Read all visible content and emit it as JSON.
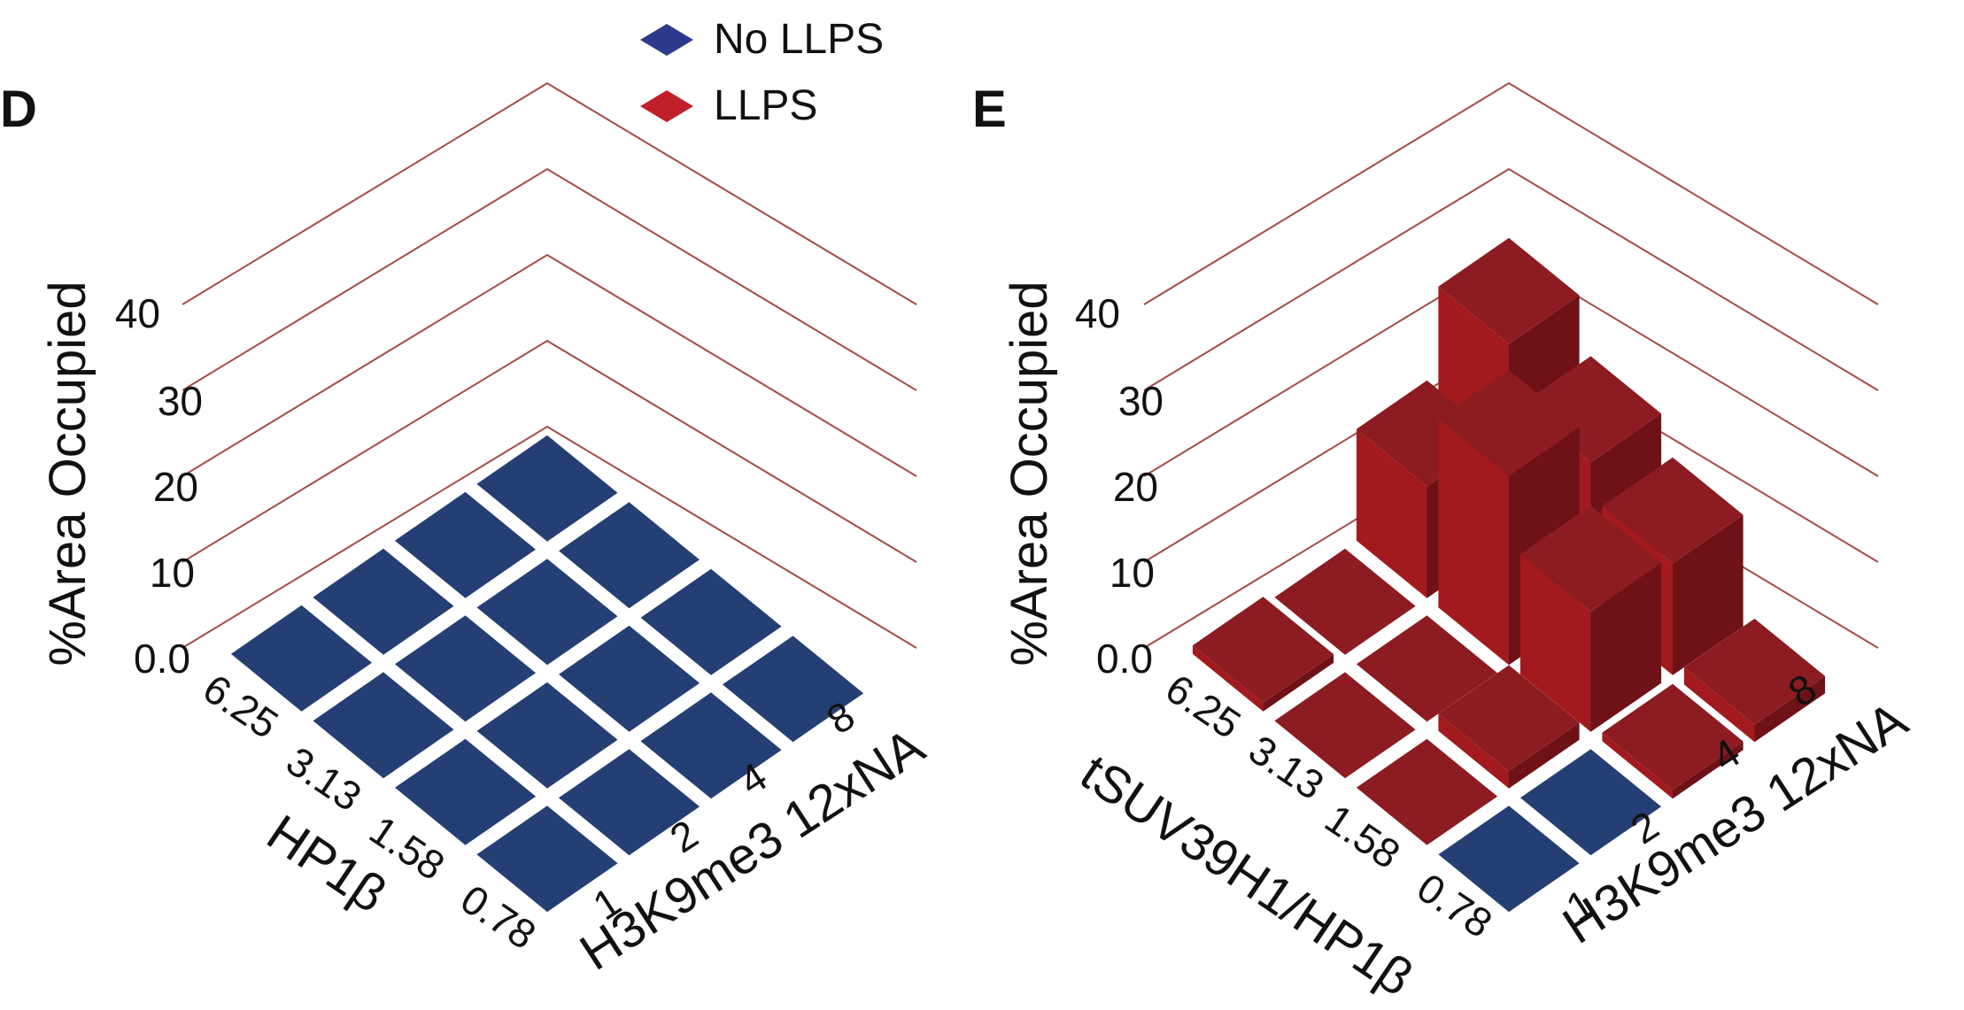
{
  "colors": {
    "no_llps": "#253f75",
    "llps_top": "#8c1c22",
    "llps_left": "#a31a1e",
    "llps_right": "#6e1217",
    "gridline": "#a54a48"
  },
  "legend": {
    "items": [
      {
        "label": "No LLPS",
        "color": "#2c3a8c"
      },
      {
        "label": "LLPS",
        "color": "#c0202a"
      }
    ]
  },
  "chart_data": [
    {
      "type": "bar3d",
      "panel": "D",
      "zlabel": "%Area Occupied",
      "z_ticks": [
        "0.0",
        "10",
        "20",
        "30",
        "40"
      ],
      "zlim": [
        0,
        40
      ],
      "xlabel": "HP1β",
      "x_ticks": [
        "6.25",
        "3.13",
        "1.58",
        "0.78"
      ],
      "ylabel": "H3K9me3 12xNA",
      "y_ticks": [
        "8",
        "4",
        "2",
        "1"
      ],
      "values": [
        [
          0,
          0,
          0,
          0
        ],
        [
          0,
          0,
          0,
          0
        ],
        [
          0,
          0,
          0,
          0
        ],
        [
          0,
          0,
          0,
          0
        ]
      ],
      "llps": [
        [
          false,
          false,
          false,
          false
        ],
        [
          false,
          false,
          false,
          false
        ],
        [
          false,
          false,
          false,
          false
        ],
        [
          false,
          false,
          false,
          false
        ]
      ]
    },
    {
      "type": "bar3d",
      "panel": "E",
      "zlabel": "%Area Occupied",
      "z_ticks": [
        "0.0",
        "10",
        "20",
        "30",
        "40"
      ],
      "zlim": [
        0,
        40
      ],
      "xlabel": "tSUV39H1/HP1β",
      "x_ticks": [
        "6.25",
        "3.13",
        "1.58",
        "0.78"
      ],
      "ylabel": "H3K9me3 12xNA",
      "y_ticks": [
        "8",
        "4",
        "2",
        "1"
      ],
      "values": [
        [
          23,
          13,
          0,
          1
        ],
        [
          17,
          22,
          0,
          0
        ],
        [
          13,
          14,
          2,
          0
        ],
        [
          2,
          1,
          0,
          0
        ]
      ],
      "llps": [
        [
          true,
          true,
          true,
          true
        ],
        [
          true,
          true,
          true,
          true
        ],
        [
          true,
          true,
          true,
          true
        ],
        [
          true,
          true,
          false,
          false
        ]
      ]
    }
  ]
}
